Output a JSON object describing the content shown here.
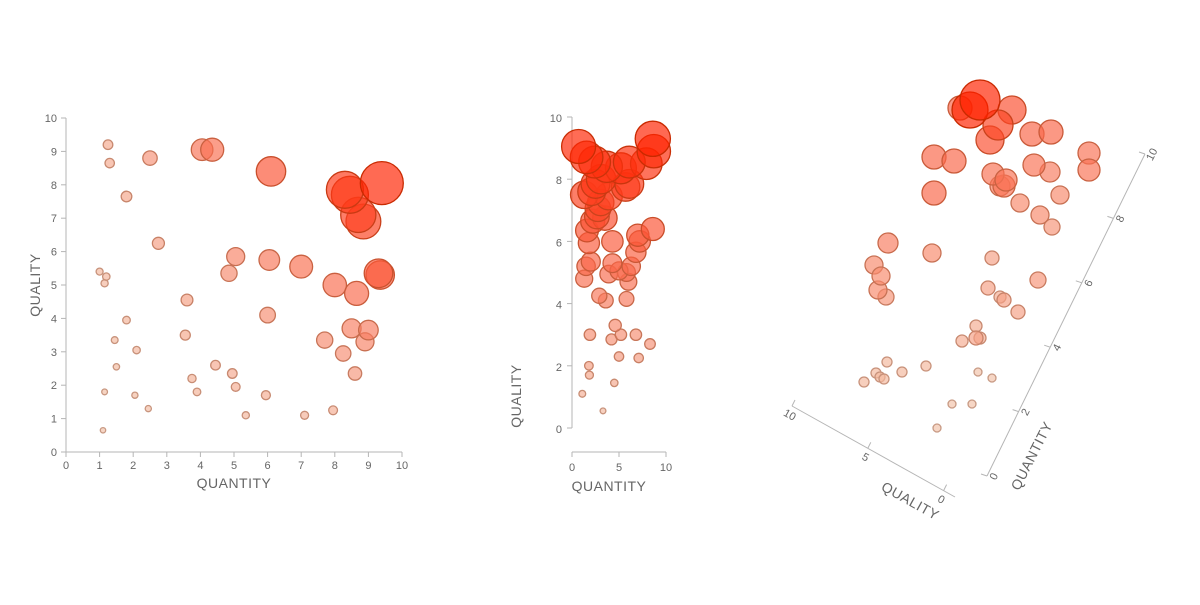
{
  "colors": {
    "low": "#f2c3aa",
    "high": "#ff2200",
    "stroke_low": "#c89a84",
    "stroke_high": "#c92a00",
    "axis": "#b5b5b5",
    "text": "#666666"
  },
  "chart_data": [
    {
      "type": "scatter",
      "title": "",
      "xlabel": "QUANTITY",
      "ylabel": "QUALITY",
      "xlim": [
        0,
        10
      ],
      "ylim": [
        0,
        10
      ],
      "xticks": [
        "0",
        "1",
        "2",
        "3",
        "4",
        "5",
        "6",
        "7",
        "8",
        "9",
        "10"
      ],
      "yticks": [
        "0",
        "1",
        "2",
        "3",
        "4",
        "5",
        "6",
        "7",
        "8",
        "9",
        "10"
      ],
      "points": [
        [
          1.1,
          0.65
        ],
        [
          1.15,
          1.8
        ],
        [
          2.05,
          1.7
        ],
        [
          2.45,
          1.3
        ],
        [
          1.5,
          2.55
        ],
        [
          1.45,
          3.35
        ],
        [
          1.8,
          3.95
        ],
        [
          2.1,
          3.05
        ],
        [
          1.0,
          5.4
        ],
        [
          1.2,
          5.25
        ],
        [
          1.15,
          5.05
        ],
        [
          1.8,
          7.65
        ],
        [
          1.25,
          9.2
        ],
        [
          1.3,
          8.65
        ],
        [
          2.5,
          8.8
        ],
        [
          2.75,
          6.25
        ],
        [
          3.55,
          3.5
        ],
        [
          3.6,
          4.55
        ],
        [
          3.75,
          2.2
        ],
        [
          3.9,
          1.8
        ],
        [
          4.45,
          2.6
        ],
        [
          4.95,
          2.35
        ],
        [
          5.05,
          1.95
        ],
        [
          5.35,
          1.1
        ],
        [
          4.85,
          5.35
        ],
        [
          5.05,
          5.85
        ],
        [
          4.05,
          9.05
        ],
        [
          4.35,
          9.05
        ],
        [
          5.95,
          1.7
        ],
        [
          6.0,
          4.1
        ],
        [
          6.05,
          5.75
        ],
        [
          6.1,
          8.4
        ],
        [
          7.0,
          5.55
        ],
        [
          7.1,
          1.1
        ],
        [
          7.95,
          1.25
        ],
        [
          7.7,
          3.35
        ],
        [
          8.0,
          5.0
        ],
        [
          8.25,
          2.95
        ],
        [
          8.5,
          3.7
        ],
        [
          8.6,
          2.35
        ],
        [
          8.65,
          4.75
        ],
        [
          8.9,
          3.3
        ],
        [
          9.0,
          3.65
        ],
        [
          9.3,
          5.35
        ],
        [
          9.35,
          5.3
        ],
        [
          8.3,
          7.85
        ],
        [
          8.45,
          7.7
        ],
        [
          8.7,
          7.1
        ],
        [
          8.85,
          6.9
        ],
        [
          9.4,
          8.05
        ]
      ]
    },
    {
      "type": "scatter",
      "title": "",
      "xlabel": "QUANTITY",
      "ylabel": "QUALITY",
      "xlim": [
        0,
        10
      ],
      "ylim": [
        0,
        10
      ],
      "xticks": [
        "0",
        "5",
        "10"
      ],
      "yticks": [
        "0",
        "2",
        "4",
        "6",
        "8",
        "10"
      ],
      "points": [
        [
          1.1,
          1.1
        ],
        [
          3.3,
          0.55
        ],
        [
          1.8,
          2.0
        ],
        [
          1.85,
          1.7
        ],
        [
          4.5,
          1.45
        ],
        [
          5.0,
          2.3
        ],
        [
          7.1,
          2.25
        ],
        [
          8.3,
          2.7
        ],
        [
          1.9,
          3.0
        ],
        [
          2.9,
          4.25
        ],
        [
          3.6,
          4.1
        ],
        [
          4.6,
          3.3
        ],
        [
          4.2,
          2.85
        ],
        [
          5.2,
          3.0
        ],
        [
          6.8,
          3.0
        ],
        [
          1.3,
          4.8
        ],
        [
          1.5,
          5.2
        ],
        [
          2.0,
          5.35
        ],
        [
          3.9,
          4.95
        ],
        [
          4.3,
          5.3
        ],
        [
          5.0,
          5.05
        ],
        [
          5.8,
          4.15
        ],
        [
          6.0,
          4.7
        ],
        [
          5.8,
          5.0
        ],
        [
          6.3,
          5.2
        ],
        [
          4.3,
          6.0
        ],
        [
          1.8,
          5.95
        ],
        [
          1.6,
          6.35
        ],
        [
          2.2,
          6.65
        ],
        [
          2.65,
          6.8
        ],
        [
          3.5,
          6.75
        ],
        [
          3.05,
          7.25
        ],
        [
          2.75,
          7.05
        ],
        [
          1.3,
          7.5
        ],
        [
          2.1,
          7.6
        ],
        [
          2.5,
          7.85
        ],
        [
          3.1,
          8.0
        ],
        [
          3.9,
          7.45
        ],
        [
          6.8,
          5.65
        ],
        [
          7.2,
          6.0
        ],
        [
          7.0,
          6.2
        ],
        [
          8.6,
          6.4
        ],
        [
          5.7,
          7.75
        ],
        [
          6.1,
          7.85
        ],
        [
          3.7,
          8.4
        ],
        [
          2.4,
          8.55
        ],
        [
          5.2,
          8.35
        ],
        [
          7.9,
          8.5
        ],
        [
          6.1,
          8.55
        ],
        [
          8.7,
          8.9
        ],
        [
          0.7,
          9.05
        ],
        [
          1.55,
          8.7
        ],
        [
          8.6,
          9.3
        ]
      ]
    },
    {
      "type": "scatter",
      "title": "",
      "xlabel": "QUANTITY",
      "ylabel": "QUALITY",
      "xlim": [
        0,
        10
      ],
      "ylim": [
        0,
        10
      ],
      "xticks": [
        "0",
        "2",
        "4",
        "6",
        "8",
        "10"
      ],
      "yticks": [
        "0",
        "5",
        "10"
      ],
      "screen_points": [
        [
          864,
          382
        ],
        [
          876,
          373
        ],
        [
          880,
          377
        ],
        [
          884,
          379
        ],
        [
          887,
          362
        ],
        [
          902,
          372
        ],
        [
          926,
          366
        ],
        [
          937,
          428
        ],
        [
          952,
          404
        ],
        [
          972,
          404
        ],
        [
          962,
          341
        ],
        [
          978,
          372
        ],
        [
          992,
          378
        ],
        [
          976,
          326
        ],
        [
          976,
          338
        ],
        [
          980,
          338
        ],
        [
          988,
          288
        ],
        [
          1004,
          300
        ],
        [
          1018,
          312
        ],
        [
          1000,
          297
        ],
        [
          1038,
          280
        ],
        [
          932,
          253
        ],
        [
          878,
          290
        ],
        [
          874,
          265
        ],
        [
          881,
          276
        ],
        [
          886,
          297
        ],
        [
          888,
          243
        ],
        [
          934,
          193
        ],
        [
          934,
          157
        ],
        [
          954,
          161
        ],
        [
          970,
          110
        ],
        [
          980,
          100
        ],
        [
          990,
          140
        ],
        [
          998,
          125
        ],
        [
          1012,
          110
        ],
        [
          1004,
          186
        ],
        [
          993,
          174
        ],
        [
          1006,
          180
        ],
        [
          1000,
          186
        ],
        [
          1020,
          203
        ],
        [
          1040,
          215
        ],
        [
          1052,
          227
        ],
        [
          1060,
          195
        ],
        [
          1034,
          165
        ],
        [
          1050,
          172
        ],
        [
          1032,
          134
        ],
        [
          1051,
          132
        ],
        [
          1089,
          153
        ],
        [
          1089,
          170
        ],
        [
          992,
          258
        ],
        [
          960,
          108
        ]
      ],
      "screen_sizes": [
        5,
        5,
        5,
        5,
        5,
        5,
        5,
        4,
        4,
        4,
        6,
        4,
        4,
        6,
        7,
        6,
        7,
        7,
        7,
        6,
        8,
        9,
        9,
        9,
        9,
        8,
        10,
        12,
        12,
        12,
        18,
        20,
        14,
        15,
        14,
        11,
        11,
        11,
        10,
        9,
        9,
        8,
        9,
        11,
        10,
        12,
        12,
        11,
        11,
        7,
        12
      ]
    }
  ]
}
